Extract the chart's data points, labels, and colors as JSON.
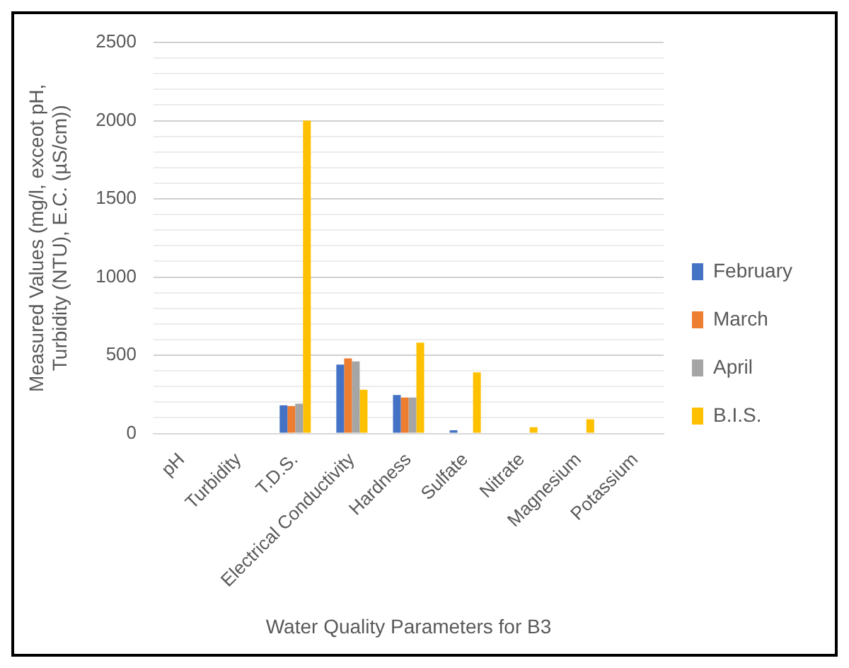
{
  "chart_data": {
    "type": "bar",
    "xlabel": "Water Quality Parameters for B3",
    "ylabel": "Measured Values (mg/l, exceot pH, Turbidity (NTU), E.C. (µS/cm))",
    "categories": [
      "pH",
      "Turbidity",
      "T.D.S.",
      "Electrical Conductivity",
      "Hardness",
      "Sulfate",
      "Nitrate",
      "Magnesium",
      "Potassium"
    ],
    "series": [
      {
        "name": "February",
        "color": "#4472c4",
        "values": [
          0,
          0,
          180,
          440,
          245,
          20,
          0,
          0,
          0
        ]
      },
      {
        "name": "March",
        "color": "#ed7d31",
        "values": [
          0,
          0,
          175,
          480,
          230,
          0,
          0,
          0,
          0
        ]
      },
      {
        "name": "April",
        "color": "#a5a5a5",
        "values": [
          0,
          0,
          190,
          460,
          230,
          0,
          0,
          0,
          0
        ]
      },
      {
        "name": "B.I.S.",
        "color": "#ffc000",
        "values": [
          0,
          0,
          2000,
          280,
          580,
          390,
          40,
          90,
          0
        ]
      }
    ],
    "ylim": [
      0,
      2500
    ],
    "yticks": [
      0,
      {
        "value": 100,
        "label": null
      },
      {
        "value": 200,
        "label": null
      },
      {
        "value": 300,
        "label": null
      },
      {
        "value": 400,
        "label": null
      },
      500,
      {
        "value": 600,
        "label": null
      },
      {
        "value": 700,
        "label": null
      },
      {
        "value": 800,
        "label": null
      },
      {
        "value": 900,
        "label": null
      },
      1000,
      {
        "value": 1100,
        "label": null
      },
      {
        "value": 1200,
        "label": null
      },
      {
        "value": 1300,
        "label": null
      },
      {
        "value": 1400,
        "label": null
      },
      1500,
      {
        "value": 1600,
        "label": null
      },
      {
        "value": 1700,
        "label": null
      },
      {
        "value": 1800,
        "label": null
      },
      {
        "value": 1900,
        "label": null
      },
      2000,
      {
        "value": 2100,
        "label": null
      },
      {
        "value": 2200,
        "label": null
      },
      {
        "value": 2300,
        "label": null
      },
      {
        "value": 2400,
        "label": null
      },
      2500
    ],
    "grid": "y",
    "legend": "right"
  }
}
